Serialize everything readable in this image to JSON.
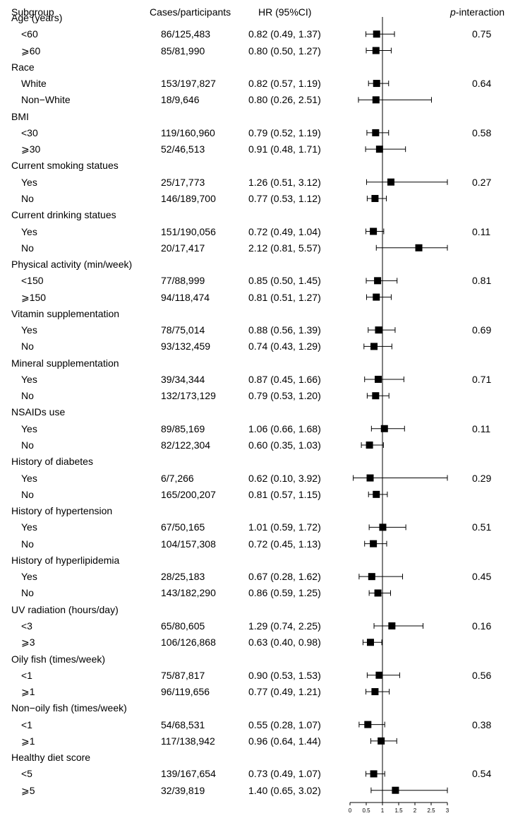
{
  "header": {
    "subgroup": "Subgroup",
    "cases": "Cases/participants",
    "hr": "HR (95%CI)",
    "p_prefix": "p",
    "p_suffix": "-interaction"
  },
  "chart_data": {
    "type": "forest",
    "title": "",
    "xlabel": "",
    "ylabel": "",
    "xlim": [
      0,
      3
    ],
    "xticks": [
      "0",
      "0.5",
      "1",
      "1.5",
      "2",
      "2.5",
      "3"
    ],
    "reference_line": 1,
    "groups": [
      {
        "name": "Age (years)",
        "p": "0.75",
        "rows": [
          {
            "label": "<60",
            "cases": "86/125,483",
            "hr_text": "0.82 (0.49, 1.37)",
            "hr": 0.82,
            "lo": 0.49,
            "hi": 1.37
          },
          {
            "label": "⩾60",
            "cases": "85/81,990",
            "hr_text": "0.80 (0.50, 1.27)",
            "hr": 0.8,
            "lo": 0.5,
            "hi": 1.27
          }
        ]
      },
      {
        "name": "Race",
        "p": "0.64",
        "rows": [
          {
            "label": "White",
            "cases": "153/197,827",
            "hr_text": "0.82 (0.57, 1.19)",
            "hr": 0.82,
            "lo": 0.57,
            "hi": 1.19
          },
          {
            "label": "Non−White",
            "cases": "18/9,646",
            "hr_text": "0.80 (0.26, 2.51)",
            "hr": 0.8,
            "lo": 0.26,
            "hi": 2.51
          }
        ]
      },
      {
        "name": "BMI",
        "p": "0.58",
        "rows": [
          {
            "label": "<30",
            "cases": "119/160,960",
            "hr_text": "0.79 (0.52, 1.19)",
            "hr": 0.79,
            "lo": 0.52,
            "hi": 1.19
          },
          {
            "label": "⩾30",
            "cases": "52/46,513",
            "hr_text": "0.91 (0.48, 1.71)",
            "hr": 0.91,
            "lo": 0.48,
            "hi": 1.71
          }
        ]
      },
      {
        "name": "Current smoking statues",
        "p": "0.27",
        "rows": [
          {
            "label": "Yes",
            "cases": "25/17,773",
            "hr_text": "1.26 (0.51, 3.12)",
            "hr": 1.26,
            "lo": 0.51,
            "hi": 3.12
          },
          {
            "label": "No",
            "cases": "146/189,700",
            "hr_text": "0.77 (0.53, 1.12)",
            "hr": 0.77,
            "lo": 0.53,
            "hi": 1.12
          }
        ]
      },
      {
        "name": "Current drinking statues",
        "p": "0.11",
        "rows": [
          {
            "label": "Yes",
            "cases": "151/190,056",
            "hr_text": "0.72 (0.49, 1.04)",
            "hr": 0.72,
            "lo": 0.49,
            "hi": 1.04
          },
          {
            "label": "No",
            "cases": "20/17,417",
            "hr_text": "2.12 (0.81, 5.57)",
            "hr": 2.12,
            "lo": 0.81,
            "hi": 5.57
          }
        ]
      },
      {
        "name": "Physical activity (min/week)",
        "p": "0.81",
        "rows": [
          {
            "label": "<150",
            "cases": "77/88,999",
            "hr_text": "0.85 (0.50, 1.45)",
            "hr": 0.85,
            "lo": 0.5,
            "hi": 1.45
          },
          {
            "label": "⩾150",
            "cases": "94/118,474",
            "hr_text": "0.81 (0.51, 1.27)",
            "hr": 0.81,
            "lo": 0.51,
            "hi": 1.27
          }
        ]
      },
      {
        "name": "Vitamin supplementation",
        "p": "0.69",
        "rows": [
          {
            "label": "Yes",
            "cases": "78/75,014",
            "hr_text": "0.88 (0.56, 1.39)",
            "hr": 0.88,
            "lo": 0.56,
            "hi": 1.39
          },
          {
            "label": "No",
            "cases": "93/132,459",
            "hr_text": "0.74 (0.43, 1.29)",
            "hr": 0.74,
            "lo": 0.43,
            "hi": 1.29
          }
        ]
      },
      {
        "name": "Mineral supplementation",
        "p": "0.71",
        "rows": [
          {
            "label": "Yes",
            "cases": "39/34,344",
            "hr_text": "0.87 (0.45, 1.66)",
            "hr": 0.87,
            "lo": 0.45,
            "hi": 1.66
          },
          {
            "label": "No",
            "cases": "132/173,129",
            "hr_text": "0.79 (0.53, 1.20)",
            "hr": 0.79,
            "lo": 0.53,
            "hi": 1.2
          }
        ]
      },
      {
        "name": "NSAIDs use",
        "p": "0.11",
        "rows": [
          {
            "label": "Yes",
            "cases": "89/85,169",
            "hr_text": "1.06 (0.66, 1.68)",
            "hr": 1.06,
            "lo": 0.66,
            "hi": 1.68
          },
          {
            "label": "No",
            "cases": "82/122,304",
            "hr_text": "0.60 (0.35, 1.03)",
            "hr": 0.6,
            "lo": 0.35,
            "hi": 1.03
          }
        ]
      },
      {
        "name": "History of diabetes",
        "p": "0.29",
        "rows": [
          {
            "label": "Yes",
            "cases": "6/7,266",
            "hr_text": "0.62 (0.10, 3.92)",
            "hr": 0.62,
            "lo": 0.1,
            "hi": 3.92
          },
          {
            "label": "No",
            "cases": "165/200,207",
            "hr_text": "0.81 (0.57, 1.15)",
            "hr": 0.81,
            "lo": 0.57,
            "hi": 1.15
          }
        ]
      },
      {
        "name": "History of hypertension",
        "p": "0.51",
        "rows": [
          {
            "label": "Yes",
            "cases": "67/50,165",
            "hr_text": "1.01 (0.59, 1.72)",
            "hr": 1.01,
            "lo": 0.59,
            "hi": 1.72
          },
          {
            "label": "No",
            "cases": "104/157,308",
            "hr_text": "0.72 (0.45, 1.13)",
            "hr": 0.72,
            "lo": 0.45,
            "hi": 1.13
          }
        ]
      },
      {
        "name": "History of hyperlipidemia",
        "p": "0.45",
        "rows": [
          {
            "label": "Yes",
            "cases": "28/25,183",
            "hr_text": "0.67 (0.28, 1.62)",
            "hr": 0.67,
            "lo": 0.28,
            "hi": 1.62
          },
          {
            "label": "No",
            "cases": "143/182,290",
            "hr_text": "0.86 (0.59, 1.25)",
            "hr": 0.86,
            "lo": 0.59,
            "hi": 1.25
          }
        ]
      },
      {
        "name": "UV radiation (hours/day)",
        "p": "0.16",
        "rows": [
          {
            "label": "<3",
            "cases": "65/80,605",
            "hr_text": "1.29 (0.74, 2.25)",
            "hr": 1.29,
            "lo": 0.74,
            "hi": 2.25
          },
          {
            "label": "⩾3",
            "cases": "106/126,868",
            "hr_text": "0.63 (0.40, 0.98)",
            "hr": 0.63,
            "lo": 0.4,
            "hi": 0.98
          }
        ]
      },
      {
        "name": "Oily fish (times/week)",
        "p": "0.56",
        "rows": [
          {
            "label": "<1",
            "cases": "75/87,817",
            "hr_text": "0.90 (0.53, 1.53)",
            "hr": 0.9,
            "lo": 0.53,
            "hi": 1.53
          },
          {
            "label": "⩾1",
            "cases": "96/119,656",
            "hr_text": "0.77 (0.49, 1.21)",
            "hr": 0.77,
            "lo": 0.49,
            "hi": 1.21
          }
        ]
      },
      {
        "name": "Non−oily fish (times/week)",
        "p": "0.38",
        "rows": [
          {
            "label": "<1",
            "cases": "54/68,531",
            "hr_text": "0.55 (0.28, 1.07)",
            "hr": 0.55,
            "lo": 0.28,
            "hi": 1.07
          },
          {
            "label": "⩾1",
            "cases": "117/138,942",
            "hr_text": "0.96 (0.64, 1.44)",
            "hr": 0.96,
            "lo": 0.64,
            "hi": 1.44
          }
        ]
      },
      {
        "name": "Healthy diet score",
        "p": "0.54",
        "rows": [
          {
            "label": "<5",
            "cases": "139/167,654",
            "hr_text": "0.73 (0.49, 1.07)",
            "hr": 0.73,
            "lo": 0.49,
            "hi": 1.07
          },
          {
            "label": "⩾5",
            "cases": "32/39,819",
            "hr_text": "1.40 (0.65, 3.02)",
            "hr": 1.4,
            "lo": 0.65,
            "hi": 3.02
          }
        ]
      }
    ]
  }
}
